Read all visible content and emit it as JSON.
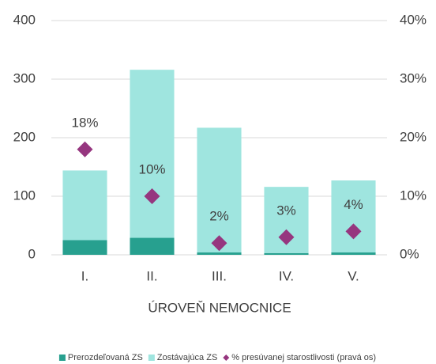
{
  "chart_data": {
    "type": "bar",
    "x_label": "ÚROVEŇ NEMOCNICE",
    "categories": [
      "I.",
      "II.",
      "III.",
      "IV.",
      "V."
    ],
    "series": [
      {
        "name": "Prerozdeľovaná ZS",
        "color": "#27a08f",
        "values": [
          25,
          29,
          4,
          3,
          4
        ]
      },
      {
        "name": "Zostávajúca ZS",
        "color": "#9fe5df",
        "values": [
          119,
          287,
          213,
          113,
          123
        ]
      },
      {
        "name": "% presúvanej starostlivosti (pravá os)",
        "color": "#96367f",
        "type": "scatter",
        "axis": "y2",
        "values": [
          18,
          10,
          2,
          3,
          4
        ],
        "value_labels": [
          "18%",
          "10%",
          "2%",
          "3%",
          "4%"
        ]
      }
    ],
    "stacked": true,
    "ylim": [
      0,
      400
    ],
    "yticks": [
      0,
      100,
      200,
      300,
      400
    ],
    "y2lim": [
      0,
      40
    ],
    "y2ticks": [
      {
        "value": 0,
        "label": "0%"
      },
      {
        "value": 10,
        "label": "10%"
      },
      {
        "value": 20,
        "label": "20%"
      },
      {
        "value": 30,
        "label": "30%"
      },
      {
        "value": 40,
        "label": "40%"
      }
    ],
    "grid": true,
    "legend": "bottom"
  }
}
